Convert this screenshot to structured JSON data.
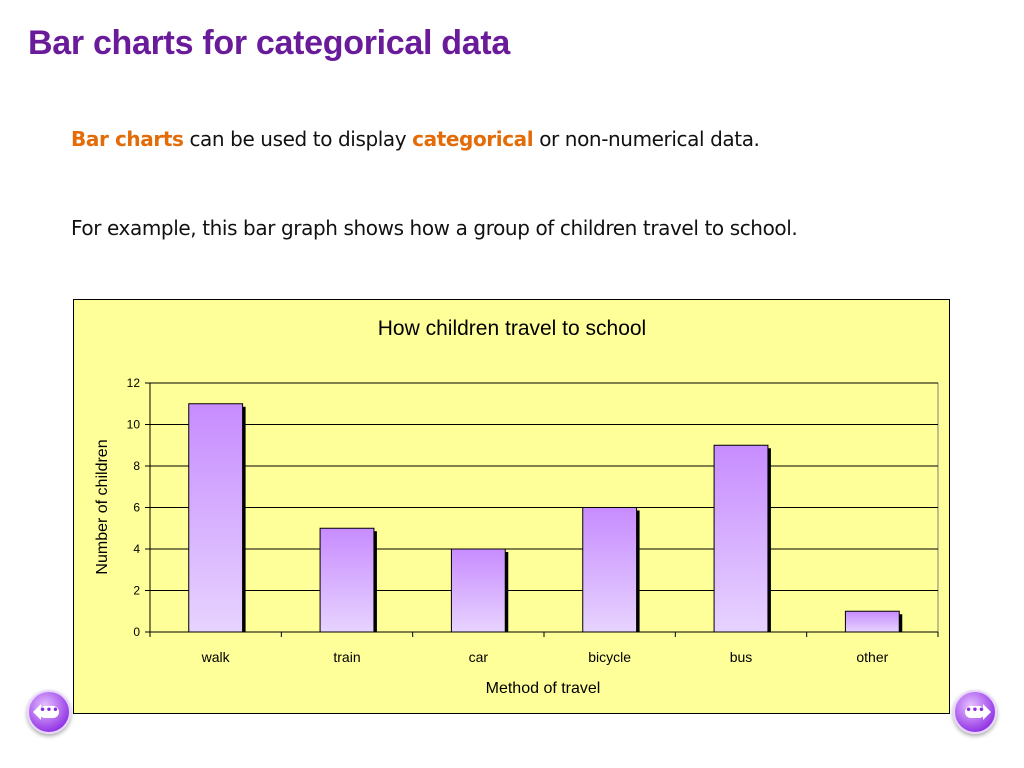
{
  "slide": {
    "title": "Bar charts for categorical data",
    "intro_part1": "Bar charts",
    "intro_part2": " can be used to display ",
    "intro_part3": "categorical",
    "intro_part4": " or non-numerical data.",
    "example_text": "For example, this bar graph shows how a group of children travel to school."
  },
  "colors": {
    "title": "#6a1b9a",
    "highlight": "#e36c09",
    "chart_background": "#ffff99",
    "bar_fill_top": "#c78cff",
    "bar_fill_bottom": "#e7d3ff"
  },
  "nav": {
    "prev_icon": "previous-slide-icon",
    "next_icon": "next-slide-icon",
    "dots": "•••"
  },
  "chart_data": {
    "type": "bar",
    "title": "How children travel to school",
    "xlabel": "Method of travel",
    "ylabel": "Number of children",
    "categories": [
      "walk",
      "train",
      "car",
      "bicycle",
      "bus",
      "other"
    ],
    "values": [
      11,
      5,
      4,
      6,
      9,
      1
    ],
    "ylim": [
      0,
      12
    ],
    "yticks": [
      0,
      2,
      4,
      6,
      8,
      10,
      12
    ],
    "grid": true,
    "legend": "none"
  }
}
